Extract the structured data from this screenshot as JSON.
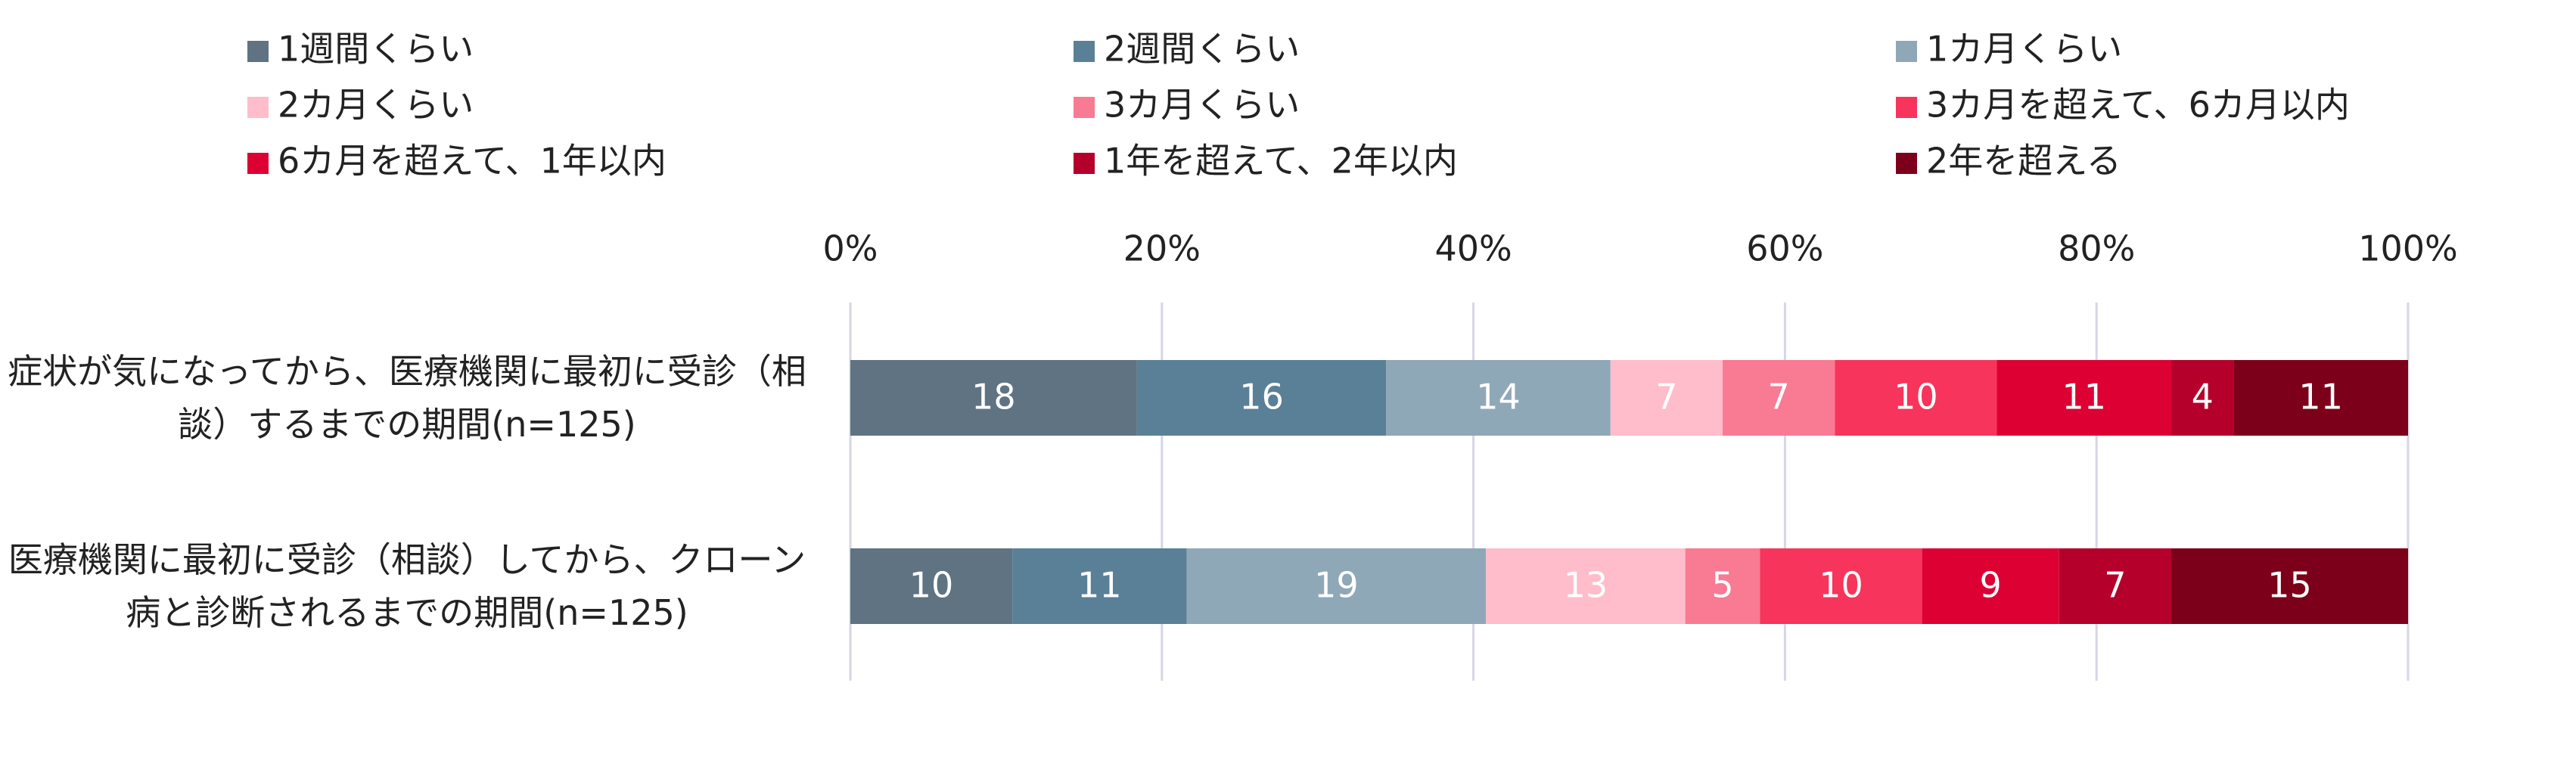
{
  "chart_data": {
    "type": "stacked-bar-horizontal",
    "categories": [
      "症状が気になってから、医療機関に最初に受診（相談）するまでの期間(n=125)",
      "医療機関に最初に受診（相談）してから、クローン病と診断されるまでの期間(n=125)"
    ],
    "xlim": [
      0,
      100
    ],
    "xticks": [
      {
        "value": 0,
        "label": "0%"
      },
      {
        "value": 20,
        "label": "20%"
      },
      {
        "value": 40,
        "label": "40%"
      },
      {
        "value": 60,
        "label": "60%"
      },
      {
        "value": 80,
        "label": "80%"
      },
      {
        "value": 100,
        "label": "100%"
      }
    ],
    "grid": true,
    "legend": "top",
    "series": [
      {
        "name": "1週間くらい",
        "color": "#5f7382",
        "values": [
          18.4,
          10.4
        ],
        "value_labels": [
          "18",
          "10"
        ]
      },
      {
        "name": "2週間くらい",
        "color": "#5a8098",
        "values": [
          16.0,
          11.2
        ],
        "value_labels": [
          "16",
          "11"
        ]
      },
      {
        "name": "1カ月くらい",
        "color": "#8ea8b8",
        "values": [
          14.4,
          19.2
        ],
        "value_labels": [
          "14",
          "19"
        ]
      },
      {
        "name": "2カ月くらい",
        "color": "#ffbccb",
        "values": [
          7.2,
          12.8
        ],
        "value_labels": [
          "7",
          "13"
        ]
      },
      {
        "name": "3カ月くらい",
        "color": "#f97a93",
        "values": [
          7.2,
          4.8
        ],
        "value_labels": [
          "7",
          "5"
        ]
      },
      {
        "name": "3カ月を超えて、6カ月以内",
        "color": "#f7345b",
        "values": [
          10.4,
          10.4
        ],
        "value_labels": [
          "10",
          "10"
        ]
      },
      {
        "name": "6カ月を超えて、1年以内",
        "color": "#dd0033",
        "values": [
          11.2,
          8.8
        ],
        "value_labels": [
          "11",
          "9"
        ]
      },
      {
        "name": "1年を超えて、2年以内",
        "color": "#b5002b",
        "values": [
          4.0,
          7.2
        ],
        "value_labels": [
          "4",
          "7"
        ]
      },
      {
        "name": "2年を超える",
        "color": "#7c0019",
        "values": [
          11.2,
          15.2
        ],
        "value_labels": [
          "11",
          "15"
        ]
      }
    ]
  }
}
